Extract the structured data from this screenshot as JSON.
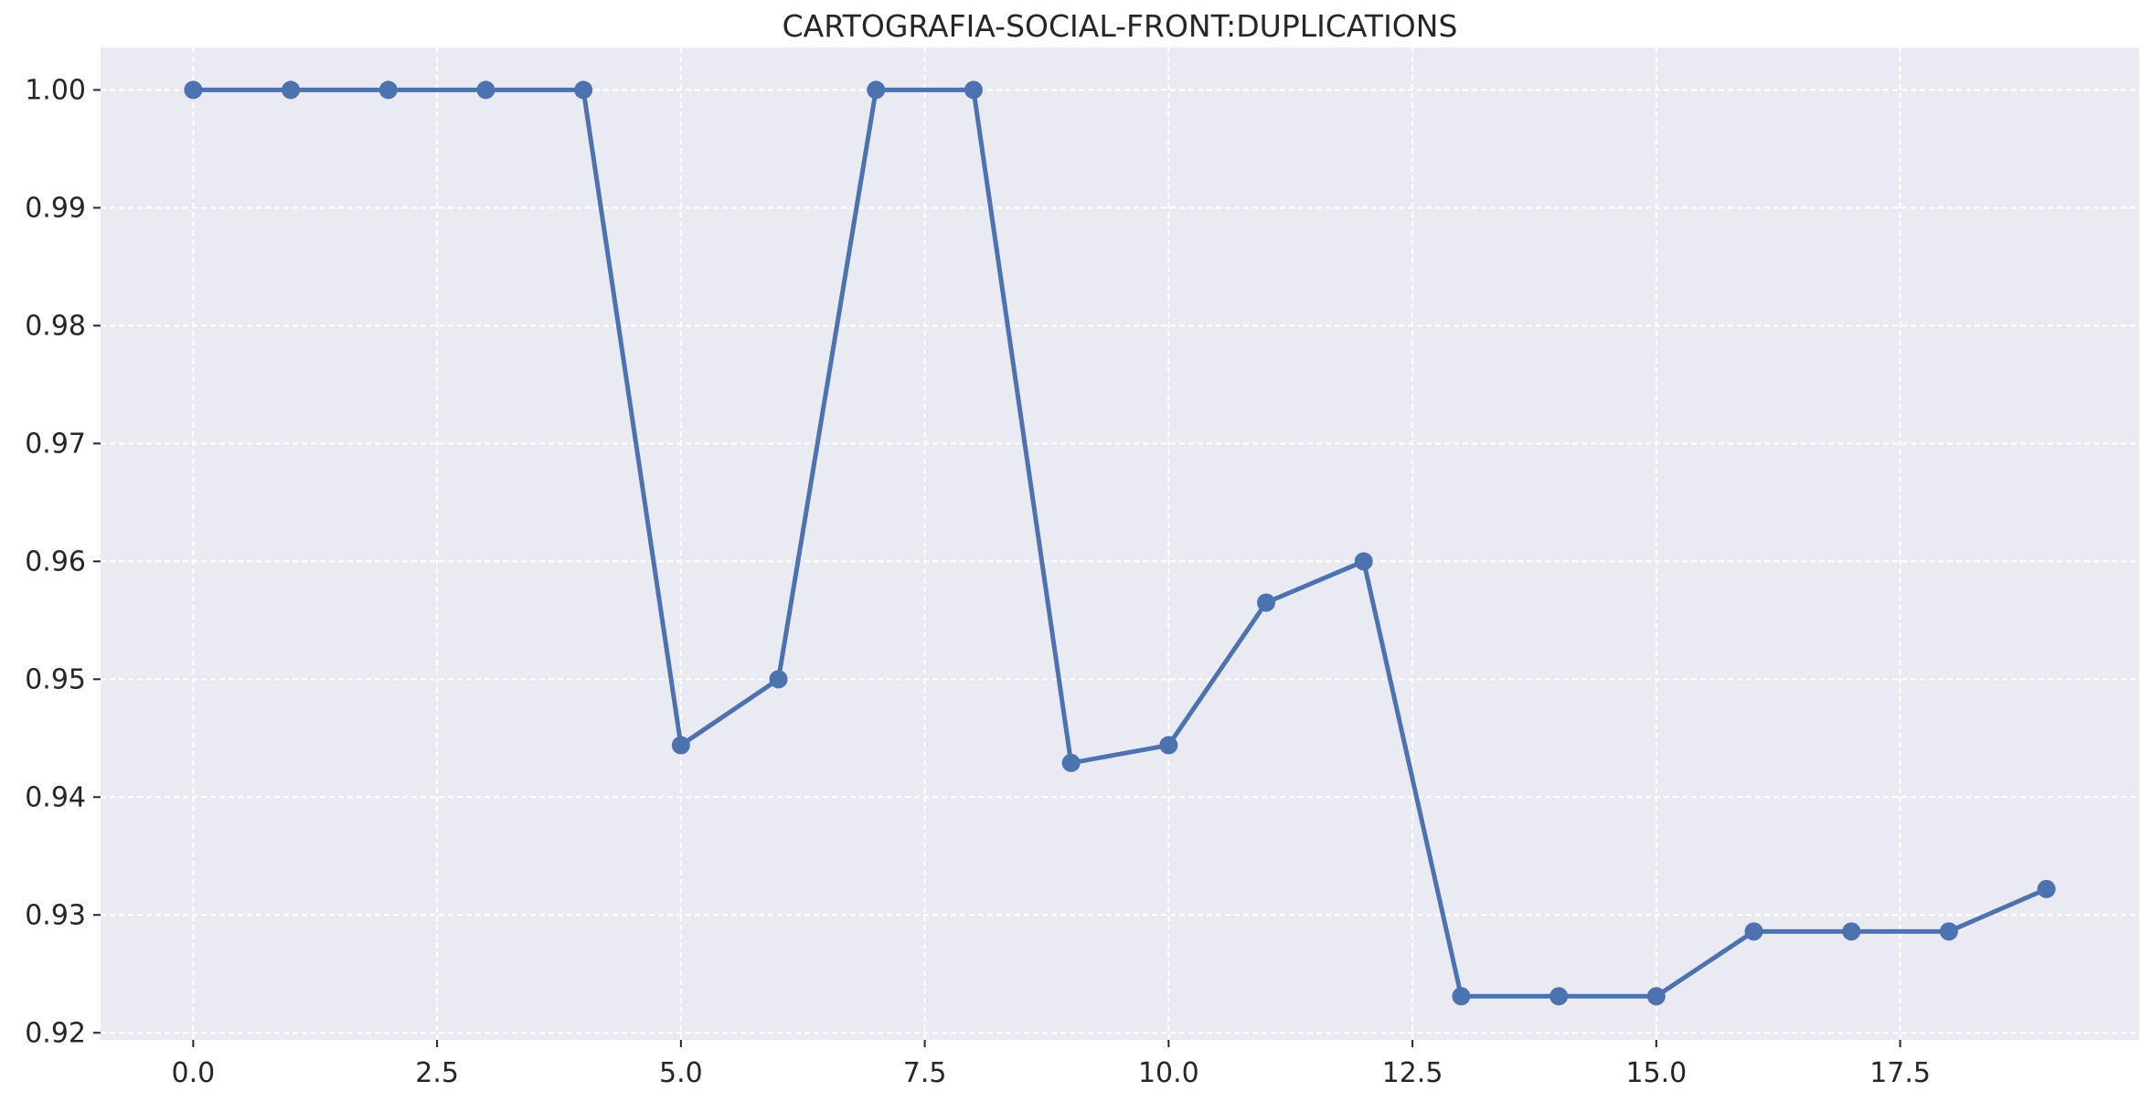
{
  "chart_data": {
    "type": "line",
    "title": "CARTOGRAFIA-SOCIAL-FRONT:DUPLICATIONS",
    "xlabel": "",
    "ylabel": "",
    "xlim": [
      -0.95,
      19.95
    ],
    "ylim": [
      0.9194,
      1.0036
    ],
    "xticks": [
      0.0,
      2.5,
      5.0,
      7.5,
      10.0,
      12.5,
      15.0,
      17.5
    ],
    "xtick_labels": [
      "0.0",
      "2.5",
      "5.0",
      "7.5",
      "10.0",
      "12.5",
      "15.0",
      "17.5"
    ],
    "yticks": [
      0.92,
      0.93,
      0.94,
      0.95,
      0.96,
      0.97,
      0.98,
      0.99,
      1.0
    ],
    "ytick_labels": [
      "0.92",
      "0.93",
      "0.94",
      "0.95",
      "0.96",
      "0.97",
      "0.98",
      "0.99",
      "1.00"
    ],
    "grid": true,
    "colors": {
      "plot_background": "#eaeaf2",
      "series": "#4c72b0"
    },
    "series": [
      {
        "x": [
          0,
          1,
          2,
          3,
          4,
          5,
          6,
          7,
          8,
          9,
          10,
          11,
          12,
          13,
          14,
          15,
          16,
          17,
          18,
          19
        ],
        "values": [
          1.0,
          1.0,
          1.0,
          1.0,
          1.0,
          0.9444,
          0.95,
          1.0,
          1.0,
          0.9429,
          0.9444,
          0.9565,
          0.96,
          0.9231,
          0.9231,
          0.9231,
          0.9286,
          0.9286,
          0.9286,
          0.9322
        ]
      }
    ]
  }
}
